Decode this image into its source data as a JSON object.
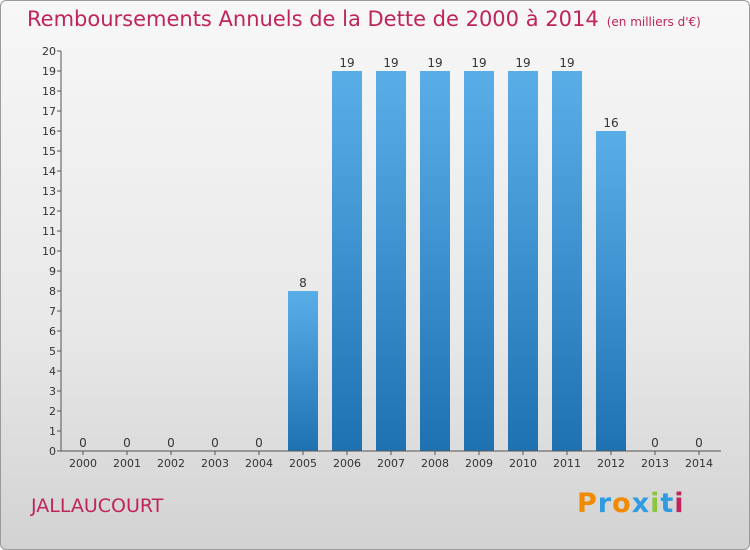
{
  "header": {
    "title": "Remboursements Annuels de la Dette de 2000 à 2014",
    "subtitle": "(en milliers d'€)"
  },
  "footer": {
    "commune": "JALLAUCOURT",
    "logo": "Proxiti"
  },
  "colors": {
    "accent": "#c0245c",
    "bar_top": "#5aaee8",
    "bar_bottom": "#1e72b2",
    "logo_letters": [
      "#f08a00",
      "#2f9be0",
      "#f08a00",
      "#2f9be0",
      "#8cc63f",
      "#2f9be0",
      "#c0245c"
    ]
  },
  "chart_data": {
    "type": "bar",
    "title": "Remboursements Annuels de la Dette de 2000 à 2014",
    "subtitle": "(en milliers d'€)",
    "xlabel": "",
    "ylabel": "",
    "categories": [
      "2000",
      "2001",
      "2002",
      "2003",
      "2004",
      "2005",
      "2006",
      "2007",
      "2008",
      "2009",
      "2010",
      "2011",
      "2012",
      "2013",
      "2014"
    ],
    "values": [
      0,
      0,
      0,
      0,
      0,
      8,
      19,
      19,
      19,
      19,
      19,
      19,
      16,
      0,
      0
    ],
    "ylim": [
      0,
      20
    ],
    "yticks": [
      0,
      1,
      2,
      3,
      4,
      5,
      6,
      7,
      8,
      9,
      10,
      11,
      12,
      13,
      14,
      15,
      16,
      17,
      18,
      19,
      20
    ],
    "grid": false,
    "data_labels": true
  }
}
